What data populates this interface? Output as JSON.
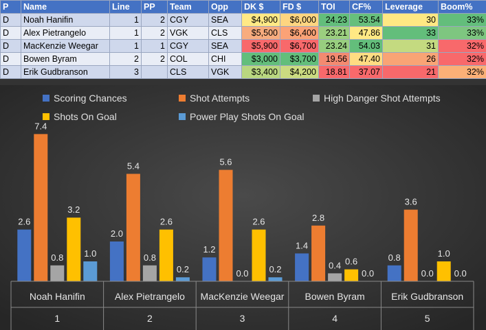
{
  "table": {
    "headers": [
      "P",
      "Name",
      "Line",
      "PP",
      "Team",
      "Opp",
      "DK $",
      "FD $",
      "TOI",
      "CF%",
      "Leverage",
      "Boom%"
    ],
    "rows": [
      {
        "p": "D",
        "name": "Noah Hanifin",
        "line": "1",
        "pp": "2",
        "team": "CGY",
        "opp": "SEA",
        "dk": "$4,900",
        "fd": "$6,000",
        "toi": "24.23",
        "cf": "53.54",
        "leverage": "30",
        "boom": "33%"
      },
      {
        "p": "D",
        "name": "Alex Pietrangelo",
        "line": "1",
        "pp": "2",
        "team": "VGK",
        "opp": "CLS",
        "dk": "$5,500",
        "fd": "$6,400",
        "toi": "23.21",
        "cf": "47.86",
        "leverage": "33",
        "boom": "33%"
      },
      {
        "p": "D",
        "name": "MacKenzie Weegar",
        "line": "1",
        "pp": "1",
        "team": "CGY",
        "opp": "SEA",
        "dk": "$5,900",
        "fd": "$6,700",
        "toi": "23.24",
        "cf": "54.03",
        "leverage": "31",
        "boom": "32%"
      },
      {
        "p": "D",
        "name": "Bowen Byram",
        "line": "2",
        "pp": "2",
        "team": "COL",
        "opp": "CHI",
        "dk": "$3,000",
        "fd": "$3,700",
        "toi": "19.56",
        "cf": "47.40",
        "leverage": "26",
        "boom": "32%"
      },
      {
        "p": "D",
        "name": "Erik Gudbranson",
        "line": "3",
        "pp": "",
        "team": "CLS",
        "opp": "VGK",
        "dk": "$3,400",
        "fd": "$4,200",
        "toi": "18.81",
        "cf": "37.07",
        "leverage": "21",
        "boom": "32%"
      }
    ],
    "colors": {
      "dk": [
        "#ffe985",
        "#f8ac7e",
        "#f8696b",
        "#63be7b",
        "#b9d780"
      ],
      "fd": [
        "#fed580",
        "#fba276",
        "#f8696b",
        "#63be7b",
        "#cbdb81"
      ],
      "toi": [
        "#63be7b",
        "#9bcf7f",
        "#98ce7f",
        "#f38a70",
        "#f8696b"
      ],
      "cf": [
        "#67bf7c",
        "#ffe984",
        "#63be7b",
        "#ffdc82",
        "#f8696b"
      ],
      "leverage": [
        "#fee883",
        "#63be7b",
        "#c4da80",
        "#f9a475",
        "#f8696b"
      ],
      "boom": [
        "#63be7b",
        "#7ec680",
        "#f8696b",
        "#f8696b",
        "#fbb077"
      ]
    }
  },
  "chart_data": {
    "type": "bar",
    "categories": [
      "Noah Hanifin",
      "Alex Pietrangelo",
      "MacKenzie Weegar",
      "Bowen Byram",
      "Erik Gudbranson"
    ],
    "category_groups": [
      "1",
      "2",
      "3",
      "4",
      "5"
    ],
    "series": [
      {
        "name": "Scoring Chances",
        "color": "#4472c4",
        "values": [
          2.6,
          2.0,
          1.2,
          1.4,
          0.8
        ]
      },
      {
        "name": "Shot Attempts",
        "color": "#ed7d31",
        "values": [
          7.4,
          5.4,
          5.6,
          2.8,
          3.6
        ]
      },
      {
        "name": "High Danger Shot Attempts",
        "color": "#a5a5a5",
        "values": [
          0.8,
          0.8,
          0.0,
          0.4,
          0.0
        ]
      },
      {
        "name": "Shots On Goal",
        "color": "#ffc000",
        "values": [
          3.2,
          2.6,
          2.6,
          0.6,
          1.0
        ]
      },
      {
        "name": "Power Play Shots On Goal",
        "color": "#5b9bd5",
        "values": [
          1.0,
          0.2,
          0.2,
          0.0,
          0.0
        ]
      }
    ],
    "value_labels": [
      [
        "2.6",
        "2.0",
        "1.2",
        "1.4",
        "0.8"
      ],
      [
        "7.4",
        "5.4",
        "5.6",
        "2.8",
        "3.6"
      ],
      [
        "0.8",
        "0.8",
        "0.0",
        "0.4",
        "0.0"
      ],
      [
        "3.2",
        "2.6",
        "2.6",
        "0.6",
        "1.0"
      ],
      [
        "1.0",
        "0.2",
        "0.2",
        "0.0",
        "0.0"
      ]
    ],
    "ylim": [
      0,
      8
    ],
    "legend_position": "top",
    "grid": false
  }
}
